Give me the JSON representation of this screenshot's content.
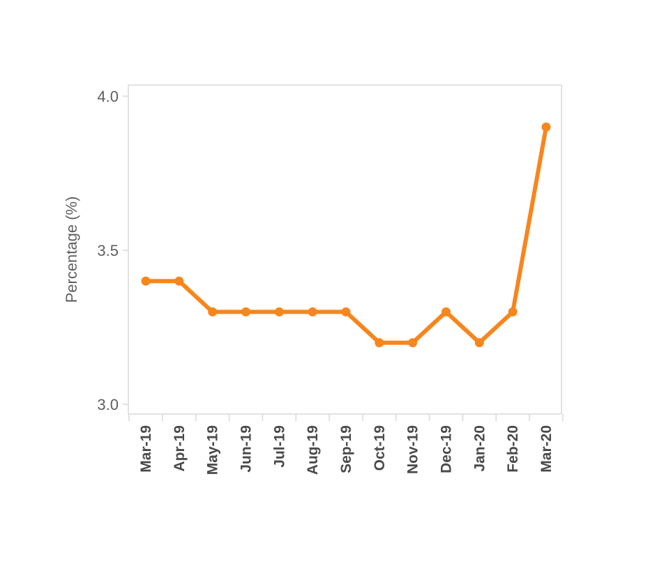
{
  "chart_data": {
    "type": "line",
    "title": "",
    "xlabel": "",
    "ylabel": "Percentage (%)",
    "categories": [
      "Mar-19",
      "Apr-19",
      "May-19",
      "Jun-19",
      "Jul-19",
      "Aug-19",
      "Sep-19",
      "Oct-19",
      "Nov-19",
      "Dec-19",
      "Jan-20",
      "Feb-20",
      "Mar-20"
    ],
    "series": [
      {
        "values": [
          3.4,
          3.4,
          3.3,
          3.3,
          3.3,
          3.3,
          3.3,
          3.2,
          3.2,
          3.3,
          3.2,
          3.3,
          3.9
        ]
      }
    ],
    "ylim": [
      3.0,
      4.0
    ],
    "yticks": [
      "3.0",
      "3.5",
      "4.0"
    ],
    "grid": false,
    "legend": "none",
    "colors": {
      "line": "#f7861d",
      "axis": "#d9d9d9"
    }
  }
}
